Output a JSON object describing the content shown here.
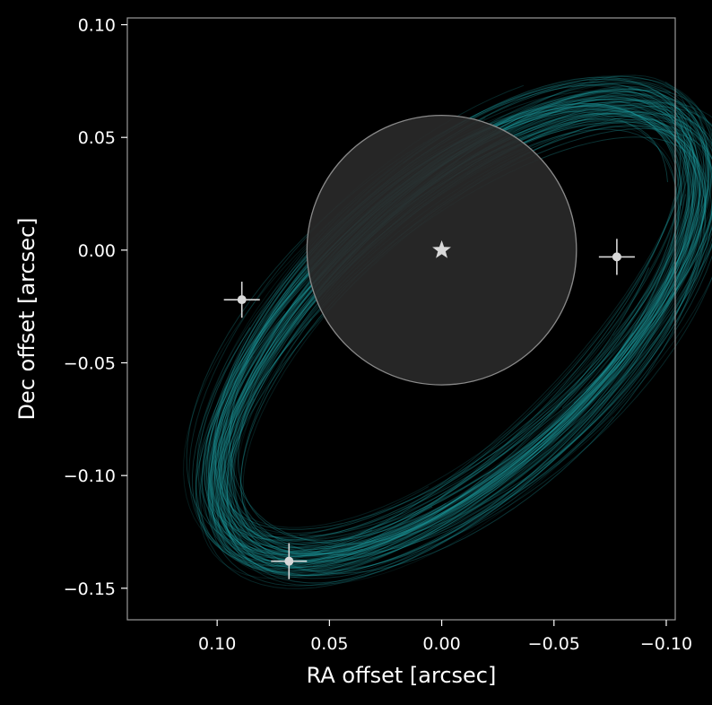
{
  "chart_data": {
    "type": "scatter",
    "title": "",
    "xlabel": "RA offset [arcsec]",
    "ylabel": "Dec offset [arcsec]",
    "xlim": [
      0.14,
      -0.104
    ],
    "ylim": [
      -0.164,
      0.103
    ],
    "x_inverted": true,
    "grid": false,
    "legend": "none",
    "xticks": [
      0.1,
      0.05,
      0.0,
      -0.05,
      -0.1
    ],
    "xtick_labels": [
      "0.10",
      "0.05",
      "0.00",
      "−0.05",
      "−0.10"
    ],
    "yticks": [
      0.1,
      0.05,
      0.0,
      -0.05,
      -0.1,
      -0.15
    ],
    "ytick_labels": [
      "0.10",
      "0.05",
      "0.00",
      "−0.05",
      "−0.10",
      "−0.15"
    ],
    "star": {
      "ra": 0.0,
      "dec": 0.0,
      "marker": "star"
    },
    "mask_circle": {
      "ra": 0.0,
      "dec": 0.0,
      "radius": 0.06
    },
    "points": [
      {
        "ra": 0.089,
        "dec": -0.022,
        "ra_err": 0.008,
        "dec_err": 0.008
      },
      {
        "ra": -0.078,
        "dec": -0.003,
        "ra_err": 0.008,
        "dec_err": 0.008
      },
      {
        "ra": 0.068,
        "dec": -0.138,
        "ra_err": 0.008,
        "dec_err": 0.008
      }
    ],
    "orbit_model": {
      "center_ra": -0.008,
      "center_dec": -0.036,
      "semi_major": 0.135,
      "semi_minor": 0.062,
      "pa_deg": 42,
      "n_tracks": 100
    },
    "colors": {
      "background": "#000000",
      "orbit": "#1fa0a4",
      "points": "#d9d9d9",
      "mask": "#2a2a2a",
      "mask_edge": "#8a8a8a",
      "axes": "#9a9a9a",
      "text": "#ffffff"
    }
  }
}
